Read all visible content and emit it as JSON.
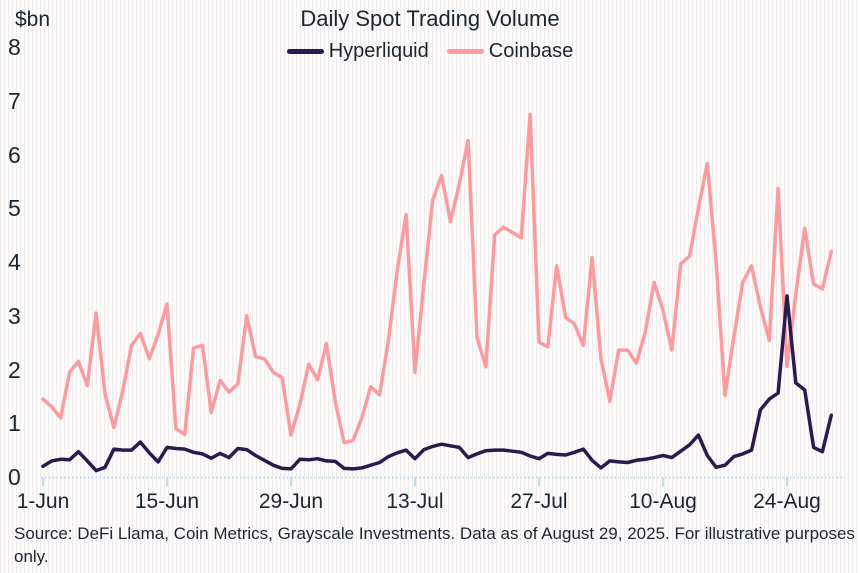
{
  "styles": {
    "text_color": "#1b2530",
    "axis_line_color": "#aed8e8",
    "background_color": "#fcfbfb",
    "background_stripe_color": "#e7dede",
    "hyperliquid_color": "#2b1a4e",
    "coinbase_color": "#f89ca0"
  },
  "source": {
    "text": "Source: DeFi Llama, Coin Metrics, Grayscale Investments. Data as of August 29, 2025. For illustrative purposes only."
  },
  "chart_data": {
    "type": "line",
    "title": "Daily Spot Trading Volume",
    "ylabel": "$bn",
    "ylim": [
      0,
      8
    ],
    "y_ticks": [
      0,
      1,
      2,
      3,
      4,
      5,
      6,
      7,
      8
    ],
    "x_start": "1-Jun",
    "x_end": "29-Aug",
    "x_frequency": "daily",
    "x_points": 90,
    "grid": "off",
    "legend_position": "top-center",
    "x_ticks": [
      {
        "label": "1-Jun",
        "day": 0
      },
      {
        "label": "15-Jun",
        "day": 14
      },
      {
        "label": "29-Jun",
        "day": 28
      },
      {
        "label": "13-Jul",
        "day": 42
      },
      {
        "label": "27-Jul",
        "day": 56
      },
      {
        "label": "10-Aug",
        "day": 70
      },
      {
        "label": "24-Aug",
        "day": 84
      }
    ],
    "series": [
      {
        "name": "Hyperliquid",
        "color": "#2b1a4e",
        "values": [
          0.2,
          0.3,
          0.33,
          0.32,
          0.47,
          0.3,
          0.12,
          0.18,
          0.52,
          0.5,
          0.5,
          0.65,
          0.45,
          0.28,
          0.55,
          0.53,
          0.52,
          0.46,
          0.43,
          0.35,
          0.44,
          0.36,
          0.53,
          0.51,
          0.4,
          0.31,
          0.22,
          0.16,
          0.15,
          0.33,
          0.32,
          0.34,
          0.3,
          0.29,
          0.16,
          0.15,
          0.17,
          0.22,
          0.27,
          0.38,
          0.45,
          0.5,
          0.34,
          0.51,
          0.57,
          0.61,
          0.58,
          0.55,
          0.36,
          0.43,
          0.49,
          0.5,
          0.5,
          0.48,
          0.46,
          0.39,
          0.34,
          0.44,
          0.42,
          0.41,
          0.46,
          0.52,
          0.31,
          0.17,
          0.3,
          0.28,
          0.27,
          0.31,
          0.33,
          0.36,
          0.4,
          0.36,
          0.48,
          0.6,
          0.78,
          0.4,
          0.18,
          0.22,
          0.38,
          0.43,
          0.5,
          1.25,
          1.45,
          1.56,
          3.37,
          1.75,
          1.62,
          0.55,
          0.47,
          1.15
        ]
      },
      {
        "name": "Coinbase",
        "color": "#f89ca0",
        "values": [
          1.45,
          1.3,
          1.1,
          1.95,
          2.15,
          1.7,
          3.05,
          1.55,
          0.92,
          1.6,
          2.45,
          2.67,
          2.2,
          2.65,
          3.22,
          0.9,
          0.79,
          2.4,
          2.45,
          1.2,
          1.8,
          1.58,
          1.73,
          3.0,
          2.24,
          2.2,
          1.95,
          1.85,
          0.78,
          1.35,
          2.1,
          1.81,
          2.48,
          1.4,
          0.64,
          0.68,
          1.1,
          1.68,
          1.53,
          2.54,
          3.85,
          4.88,
          1.95,
          3.6,
          5.15,
          5.61,
          4.75,
          5.45,
          6.26,
          2.6,
          2.05,
          4.5,
          4.65,
          4.55,
          4.45,
          6.75,
          2.51,
          2.42,
          3.93,
          2.97,
          2.85,
          2.45,
          4.08,
          2.2,
          1.41,
          2.36,
          2.36,
          2.12,
          2.7,
          3.62,
          3.1,
          2.36,
          3.96,
          4.11,
          5.0,
          5.83,
          4.0,
          1.52,
          2.6,
          3.62,
          3.93,
          3.16,
          2.54,
          5.37,
          2.06,
          3.4,
          4.63,
          3.59,
          3.5,
          4.2
        ]
      }
    ]
  }
}
